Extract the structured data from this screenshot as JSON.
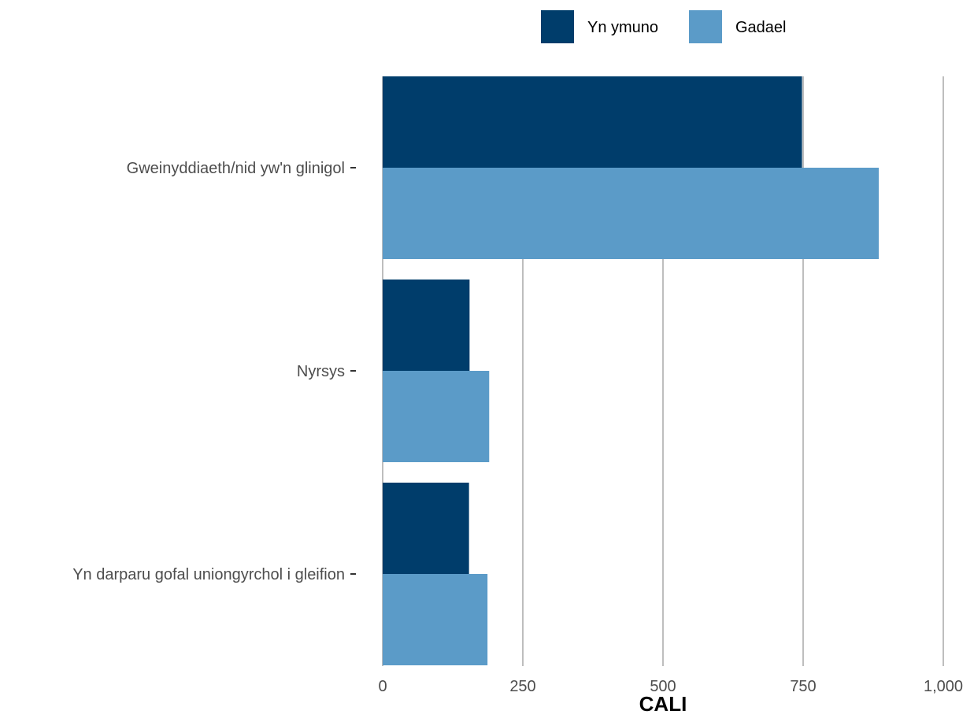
{
  "chart_data": {
    "type": "bar",
    "orientation": "horizontal",
    "categories": [
      "Gweinyddiaeth/nid yw'n glinigol",
      "Nyrsys",
      "Yn darparu gofal uniongyrchol i gleifion"
    ],
    "series": [
      {
        "name": "Yn ymuno",
        "color": "#003d6b",
        "values": [
          748,
          155,
          154
        ]
      },
      {
        "name": "Gadael",
        "color": "#5b9bc8",
        "values": [
          885,
          190,
          187
        ]
      }
    ],
    "xlabel": "CALI",
    "ylabel": "",
    "xlim": [
      0,
      1000
    ],
    "xticks": [
      0,
      250,
      500,
      750,
      1000
    ],
    "xtick_labels": [
      "0",
      "250",
      "500",
      "750",
      "1,000"
    ],
    "grid": true,
    "legend_position": "top"
  }
}
